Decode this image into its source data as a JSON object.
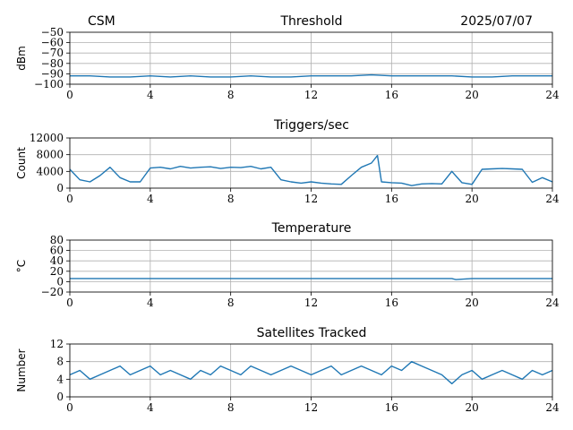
{
  "header": {
    "left": "CSM",
    "right": "2025/07/07"
  },
  "colors": {
    "series": "#1f77b4",
    "grid": "#b0b0b0"
  },
  "chart_data": [
    {
      "type": "line",
      "title": "Threshold",
      "ylabel": "dBm",
      "xlim": [
        0,
        24
      ],
      "ylim": [
        -100,
        -50
      ],
      "xticks": [
        "0",
        "4",
        "8",
        "12",
        "16",
        "20",
        "24"
      ],
      "yticks": [
        "−50",
        "−60",
        "−70",
        "−80",
        "−90",
        "−100"
      ],
      "ytick_values": [
        -50,
        -60,
        -70,
        -80,
        -90,
        -100
      ],
      "grid": true,
      "series": [
        {
          "x": [
            0,
            1,
            2,
            3,
            4,
            5,
            6,
            7,
            8,
            9,
            10,
            11,
            12,
            13,
            14,
            15,
            16,
            17,
            18,
            19,
            20,
            21,
            22,
            23,
            24
          ],
          "y": [
            -92,
            -92,
            -93,
            -93,
            -92,
            -93,
            -92,
            -93,
            -93,
            -92,
            -93,
            -93,
            -92,
            -92,
            -92,
            -91,
            -92,
            -92,
            -92,
            -92,
            -93,
            -93,
            -92,
            -92,
            -92
          ]
        }
      ]
    },
    {
      "type": "line",
      "title": "Triggers/sec",
      "ylabel": "Count",
      "xlim": [
        0,
        24
      ],
      "ylim": [
        0,
        12000
      ],
      "xticks": [
        "0",
        "4",
        "8",
        "12",
        "16",
        "20",
        "24"
      ],
      "yticks": [
        "12000",
        "8000",
        "4000",
        "0"
      ],
      "ytick_values": [
        12000,
        8000,
        4000,
        0
      ],
      "grid": true,
      "series": [
        {
          "x": [
            0,
            0.5,
            1,
            1.5,
            2,
            2.5,
            3,
            3.5,
            4,
            4.5,
            5,
            5.5,
            6,
            6.5,
            7,
            7.5,
            8,
            8.5,
            9,
            9.5,
            10,
            10.5,
            11,
            11.5,
            12,
            12.5,
            13,
            13.5,
            14,
            14.5,
            15,
            15.3,
            15.5,
            16,
            16.5,
            17,
            17.5,
            18,
            18.5,
            19,
            19.5,
            20,
            20.5,
            21,
            21.5,
            22,
            22.5,
            23,
            23.5,
            24
          ],
          "y": [
            4500,
            2000,
            1500,
            3000,
            5000,
            2500,
            1500,
            1500,
            4800,
            5000,
            4600,
            5200,
            4800,
            5000,
            5100,
            4700,
            5000,
            4900,
            5200,
            4600,
            5000,
            2000,
            1500,
            1200,
            1500,
            1200,
            1000,
            900,
            3000,
            5000,
            6000,
            7800,
            1500,
            1300,
            1200,
            600,
            1000,
            1100,
            1000,
            4000,
            1300,
            900,
            4500,
            4600,
            4700,
            4600,
            4500,
            1400,
            2500,
            1500
          ]
        }
      ]
    },
    {
      "type": "line",
      "title": "Temperature",
      "ylabel": "°C",
      "xlim": [
        0,
        24
      ],
      "ylim": [
        -20,
        80
      ],
      "xticks": [
        "0",
        "4",
        "8",
        "12",
        "16",
        "20",
        "24"
      ],
      "yticks": [
        "80",
        "60",
        "40",
        "20",
        "0",
        "−20"
      ],
      "ytick_values": [
        80,
        60,
        40,
        20,
        0,
        -20
      ],
      "grid": true,
      "series": [
        {
          "x": [
            0,
            2,
            4,
            6,
            8,
            10,
            12,
            14,
            16,
            18,
            19,
            19.2,
            20,
            22,
            24
          ],
          "y": [
            6,
            6,
            6,
            6,
            6,
            6,
            6,
            6,
            6,
            6,
            6,
            4,
            6,
            6,
            6
          ]
        }
      ]
    },
    {
      "type": "line",
      "title": "Satellites Tracked",
      "ylabel": "Number",
      "xlim": [
        0,
        24
      ],
      "ylim": [
        0,
        12
      ],
      "xticks": [
        "0",
        "4",
        "8",
        "12",
        "16",
        "20",
        "24"
      ],
      "yticks": [
        "12",
        "8",
        "4",
        "0"
      ],
      "ytick_values": [
        12,
        8,
        4,
        0
      ],
      "grid": true,
      "series": [
        {
          "x": [
            0,
            0.5,
            1,
            1.5,
            2,
            2.5,
            3,
            3.5,
            4,
            4.5,
            5,
            5.5,
            6,
            6.5,
            7,
            7.5,
            8,
            8.5,
            9,
            9.5,
            10,
            10.5,
            11,
            11.5,
            12,
            12.5,
            13,
            13.5,
            14,
            14.5,
            15,
            15.5,
            16,
            16.5,
            17,
            17.5,
            18,
            18.5,
            19,
            19.5,
            20,
            20.5,
            21,
            21.5,
            22,
            22.5,
            23,
            23.5,
            24
          ],
          "y": [
            5,
            6,
            4,
            5,
            6,
            7,
            5,
            6,
            7,
            5,
            6,
            5,
            4,
            6,
            5,
            7,
            6,
            5,
            7,
            6,
            5,
            6,
            7,
            6,
            5,
            6,
            7,
            5,
            6,
            7,
            6,
            5,
            7,
            6,
            8,
            7,
            6,
            5,
            3,
            5,
            6,
            4,
            5,
            6,
            5,
            4,
            6,
            5,
            6
          ]
        }
      ]
    }
  ]
}
